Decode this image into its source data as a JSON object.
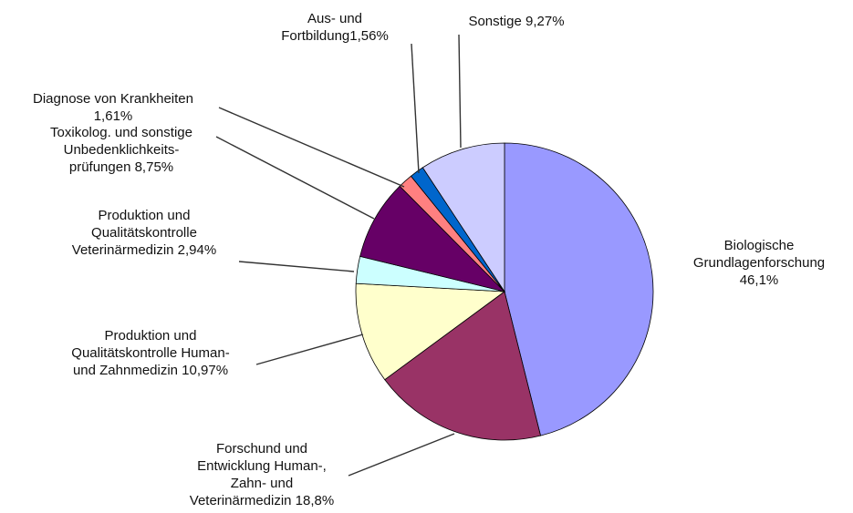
{
  "chart_data": {
    "type": "pie",
    "title": "",
    "start": "12 o'clock, clockwise",
    "slices": [
      {
        "label_lines": [
          "Biologische",
          "Grundlagenforschung",
          "46,1%"
        ],
        "value": 46.1,
        "color": "#9999ff"
      },
      {
        "label_lines": [
          "Forschund und",
          "Entwicklung Human-,",
          "Zahn- und",
          "Veterinärmedizin 18,8%"
        ],
        "value": 18.8,
        "color": "#993366"
      },
      {
        "label_lines": [
          "Produktion und",
          "Qualitätskontrolle Human-",
          "und Zahnmedizin 10,97%"
        ],
        "value": 10.97,
        "color": "#ffffcc"
      },
      {
        "label_lines": [
          "Produktion und",
          "Qualitätskontrolle",
          "Veterinärmedizin 2,94%"
        ],
        "value": 2.94,
        "color": "#ccffff"
      },
      {
        "label_lines": [
          "Toxikolog. und sonstige",
          "Unbedenklichkeits-",
          "prüfungen 8,75%"
        ],
        "value": 8.75,
        "color": "#660066"
      },
      {
        "label_lines": [
          "Diagnose von Krankheiten",
          "1,61%"
        ],
        "value": 1.61,
        "color": "#ff8080"
      },
      {
        "label_lines": [
          "Aus- und",
          "Fortbildung1,56%"
        ],
        "value": 1.56,
        "color": "#0066cc"
      },
      {
        "label_lines": [
          "Sonstige 9,27%"
        ],
        "value": 9.27,
        "color": "#ccccff"
      }
    ]
  }
}
